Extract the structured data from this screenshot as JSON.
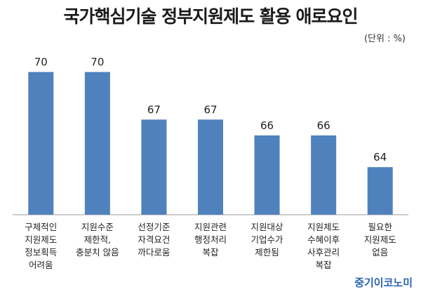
{
  "chart_data": {
    "type": "bar",
    "title": "국가핵심기술 정부지원제도 활용 애로요인",
    "unit": "(단위 : %)",
    "categories": [
      "구체적인\n지원제도\n정보획득\n어려움",
      "지원수준\n제한적,\n충분치 않음",
      "선정기준\n자격요건\n까다로움",
      "지원관련\n행정처리\n복잡",
      "지원대상\n기업수가\n제한됨",
      "지원제도\n수혜이후\n사후관리\n복잡",
      "필요한\n지원제도\n없음"
    ],
    "values": [
      70,
      70,
      67,
      67,
      66,
      66,
      64
    ],
    "value_labels": [
      "70",
      "70",
      "67",
      "67",
      "66",
      "66",
      "64"
    ],
    "ylim": [
      61,
      71
    ],
    "bar_color": "#4f81bd",
    "grid": false,
    "legend": "none"
  },
  "source": "중기이코노미"
}
